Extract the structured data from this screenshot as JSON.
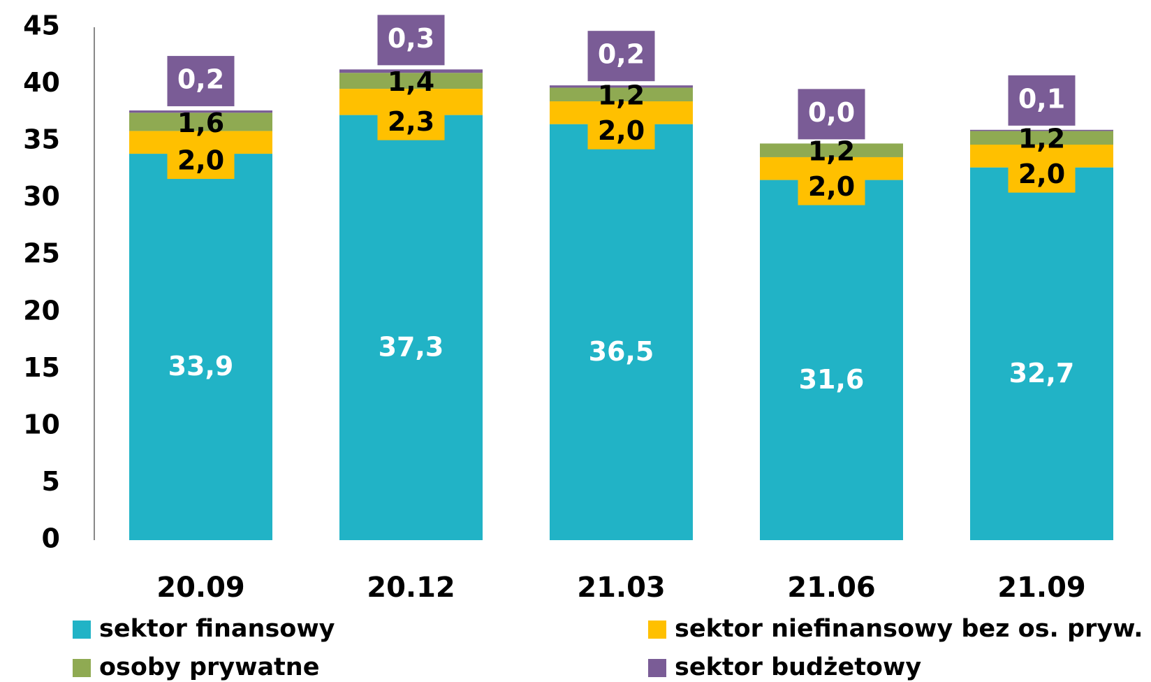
{
  "chart_data": {
    "type": "stacked_bar",
    "categories": [
      "20.09",
      "20.12",
      "21.03",
      "21.06",
      "21.09"
    ],
    "series": [
      {
        "name": "sektor finansowy",
        "color": "#21b3c6",
        "values": [
          33.9,
          37.3,
          36.5,
          31.6,
          32.7
        ],
        "value_labels": [
          "33,9",
          "37,3",
          "36,5",
          "31,6",
          "32,7"
        ]
      },
      {
        "name": "sektor niefinansowy bez os. pryw.",
        "color": "#ffc000",
        "values": [
          2.0,
          2.3,
          2.0,
          2.0,
          2.0
        ],
        "value_labels": [
          "2,0",
          "2,3",
          "2,0",
          "2,0",
          "2,0"
        ]
      },
      {
        "name": "osoby prywatne",
        "color": "#8faa52",
        "values": [
          1.6,
          1.4,
          1.2,
          1.2,
          1.2
        ],
        "value_labels": [
          "1,6",
          "1,4",
          "1,2",
          "1,2",
          "1,2"
        ]
      },
      {
        "name": "sektor budżetowy",
        "color": "#7a5c96",
        "values": [
          0.2,
          0.3,
          0.2,
          0.0,
          0.1
        ],
        "value_labels": [
          "0,2",
          "0,3",
          "0,2",
          "0,0",
          "0,1"
        ]
      }
    ],
    "ylim": [
      0,
      45
    ],
    "yticks": [
      0,
      5,
      10,
      15,
      20,
      25,
      30,
      35,
      40,
      45
    ],
    "grid": false
  }
}
